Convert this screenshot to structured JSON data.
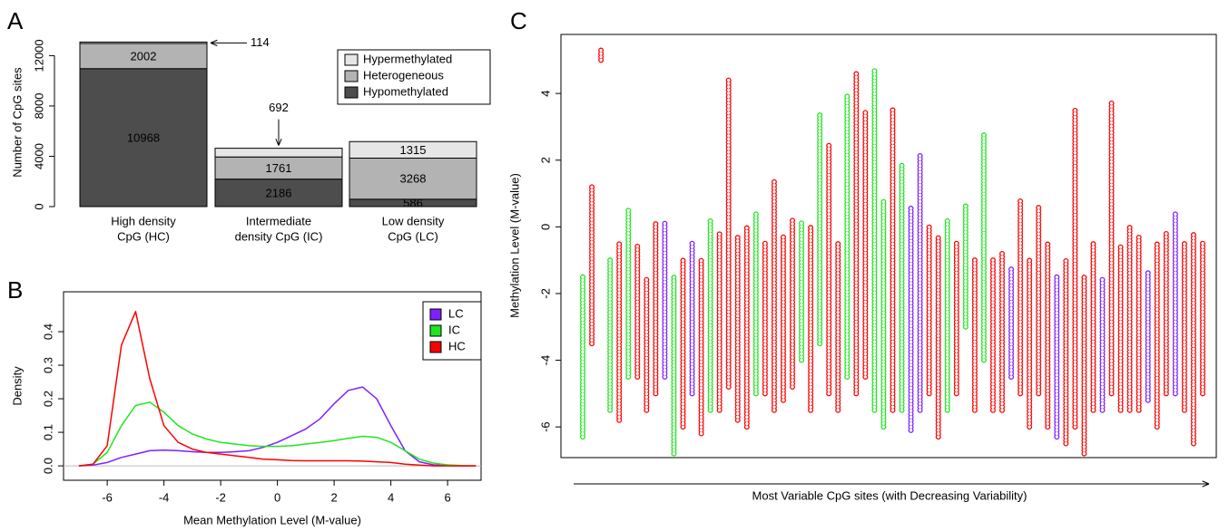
{
  "chart_data": [
    {
      "panel": "A",
      "type": "stacked_bar",
      "ylabel": "Number of CpG sites",
      "categories": [
        "High density\nCpG (HC)",
        "Intermediate\ndensity CpG (IC)",
        "Low density\nCpG (LC)"
      ],
      "series": [
        {
          "name": "Hypomethylated",
          "color": "#4d4d4d",
          "values": [
            10968,
            2186,
            586
          ]
        },
        {
          "name": "Heterogeneous",
          "color": "#b3b3b3",
          "values": [
            2002,
            1761,
            3268
          ]
        },
        {
          "name": "Hypermethylated",
          "color": "#e6e6e6",
          "values": [
            114,
            692,
            1315
          ]
        }
      ],
      "ylim": [
        0,
        13400
      ],
      "yticks": [
        0,
        4000,
        8000,
        12000
      ],
      "legend": "topright"
    },
    {
      "panel": "B",
      "type": "line",
      "xlabel": "Mean Methylation Level (M-value)",
      "ylabel": "Density",
      "x": [
        -7,
        -6.5,
        -6,
        -5.5,
        -5,
        -4.5,
        -4,
        -3.5,
        -3,
        -2.5,
        -2,
        -1.5,
        -1,
        -0.5,
        0,
        0.5,
        1,
        1.5,
        2,
        2.5,
        3,
        3.5,
        4,
        4.5,
        5,
        5.5,
        6,
        6.5,
        7
      ],
      "series": [
        {
          "name": "LC",
          "color": "#7f1fff",
          "values": [
            0,
            0.002,
            0.01,
            0.025,
            0.035,
            0.045,
            0.047,
            0.045,
            0.042,
            0.04,
            0.04,
            0.042,
            0.045,
            0.055,
            0.07,
            0.09,
            0.11,
            0.14,
            0.185,
            0.225,
            0.235,
            0.2,
            0.12,
            0.045,
            0.012,
            0.003,
            0.001,
            0,
            0
          ]
        },
        {
          "name": "IC",
          "color": "#1ee61e",
          "values": [
            0,
            0.005,
            0.04,
            0.12,
            0.18,
            0.19,
            0.16,
            0.12,
            0.095,
            0.08,
            0.07,
            0.065,
            0.06,
            0.058,
            0.058,
            0.06,
            0.065,
            0.07,
            0.075,
            0.082,
            0.088,
            0.085,
            0.07,
            0.045,
            0.02,
            0.008,
            0.003,
            0.001,
            0
          ]
        },
        {
          "name": "HC",
          "color": "#ff0000",
          "values": [
            0,
            0.005,
            0.06,
            0.36,
            0.46,
            0.26,
            0.12,
            0.07,
            0.05,
            0.04,
            0.035,
            0.03,
            0.025,
            0.02,
            0.018,
            0.016,
            0.015,
            0.015,
            0.015,
            0.015,
            0.014,
            0.012,
            0.01,
            0.005,
            0.002,
            0,
            0,
            0,
            0
          ]
        }
      ],
      "xlim": [
        -7.54,
        7.18
      ],
      "xticks": [
        -6,
        -4,
        -2,
        0,
        2,
        4,
        6
      ],
      "ylim": [
        -0.043,
        0.519
      ],
      "yticks": [
        {
          "value": 0,
          "label": "0.0"
        },
        0.1,
        0.2,
        0.3,
        0.4
      ],
      "legend": "topright"
    },
    {
      "panel": "C",
      "type": "strip",
      "xlabel": "Most Variable CpG sites (with Decreasing Variability)",
      "ylabel": "Methylation Level (M-value)",
      "group_colors": [
        "#ff0000",
        "#1ee61e",
        "#7f1fff"
      ],
      "groups": [
        1,
        0,
        0,
        1,
        0,
        1,
        0,
        0,
        0,
        2,
        1,
        0,
        2,
        0,
        1,
        0,
        0,
        0,
        0,
        1,
        0,
        0,
        0,
        0,
        1,
        0,
        1,
        0,
        0,
        1,
        0,
        0,
        1,
        1,
        0,
        1,
        2,
        2,
        0,
        0,
        1,
        0,
        1,
        0,
        1,
        0,
        0,
        2,
        0,
        0,
        0,
        0,
        2,
        0,
        0,
        0,
        0,
        2,
        0,
        0,
        0,
        0,
        2,
        0,
        0,
        2,
        0,
        0,
        0
      ],
      "low": [
        -6.3,
        -3.5,
        5.0,
        -5.5,
        -5.8,
        -4.5,
        -4.5,
        -5.5,
        -5.0,
        -4.5,
        -6.8,
        -6.0,
        -5.0,
        -6.2,
        -5.5,
        -5.5,
        -4.8,
        -5.8,
        -6.0,
        -5.0,
        -5.0,
        -5.5,
        -5.2,
        -4.8,
        -4.0,
        -5.5,
        -3.5,
        -5.0,
        -5.5,
        -4.5,
        -5.0,
        -4.5,
        -5.5,
        -6.0,
        -5.5,
        -5.5,
        -6.1,
        -5.5,
        -5.0,
        -6.3,
        -5.5,
        -5.0,
        -3.0,
        -5.5,
        -4.0,
        -5.5,
        -5.5,
        -4.5,
        -5.0,
        -6.0,
        -5.0,
        -6.0,
        -6.3,
        -6.5,
        -6.0,
        -6.8,
        -5.5,
        -5.5,
        -5.0,
        -5.5,
        -5.5,
        -5.5,
        -5.2,
        -6.0,
        -5.0,
        -5.0,
        -5.5,
        -6.5,
        -5.0
      ],
      "high": [
        -1.5,
        1.2,
        5.3,
        -1.0,
        -0.5,
        0.5,
        -0.5,
        -1.5,
        0.1,
        0.1,
        -1.5,
        -1.0,
        -0.5,
        -1.0,
        0.2,
        -0.2,
        4.4,
        -0.3,
        0.0,
        0.4,
        -0.5,
        1.4,
        -0.3,
        0.2,
        0.2,
        0.0,
        3.4,
        2.5,
        -0.5,
        4.0,
        4.6,
        3.5,
        4.7,
        0.8,
        3.5,
        1.9,
        0.6,
        2.2,
        0.0,
        -0.3,
        0.2,
        -0.5,
        0.7,
        -1.0,
        2.8,
        -1.0,
        -0.8,
        -1.2,
        0.8,
        -1.0,
        0.6,
        -0.5,
        -1.5,
        -1.0,
        3.5,
        -1.5,
        -0.5,
        -1.5,
        3.8,
        -0.6,
        0.0,
        -0.3,
        -1.3,
        -0.5,
        -0.2,
        0.4,
        -0.5,
        -0.2,
        -0.5
      ],
      "ylim": [
        -6.92,
        5.77
      ],
      "yticks": [
        -6,
        -4,
        -2,
        0,
        2,
        4
      ]
    }
  ]
}
